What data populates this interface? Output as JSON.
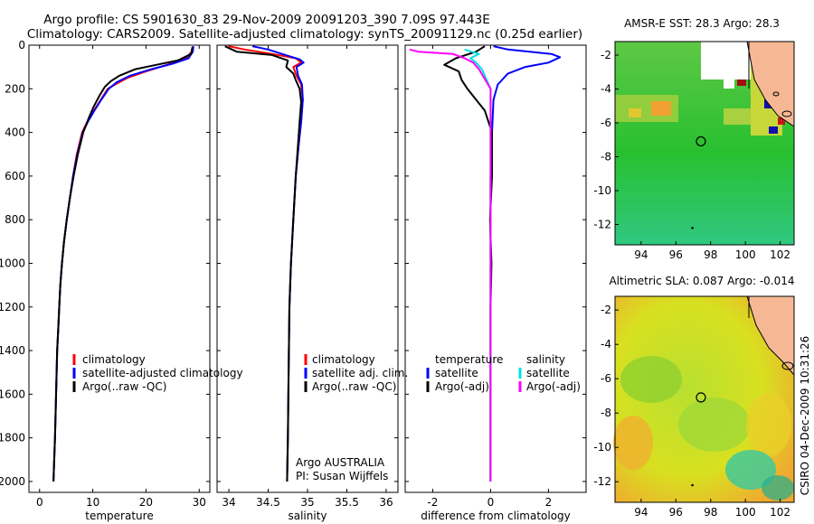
{
  "title_line1": "Argo profile: CS 5901630_83 29-Nov-2009 20091203_390 7.09S 97.443E",
  "title_line2": "Climatology: CARS2009. Satellite-adjusted climatology: synTS_20091129.nc (0.25d earlier)",
  "side_label": "CSIRO 04-Dec-2009 10:31:26",
  "colors": {
    "clim": "#ff0000",
    "sat": "#0000ff",
    "argo": "#000000",
    "cyan": "#00e0e0",
    "magenta": "#ff00ff"
  },
  "chart_data": [
    {
      "type": "line",
      "xlabel": "temperature",
      "xlim": [
        -2,
        32
      ],
      "ylim": [
        2050,
        0
      ],
      "xticks": [
        0,
        10,
        20,
        30
      ],
      "yticks": [
        0,
        200,
        400,
        600,
        800,
        1000,
        1200,
        1400,
        1600,
        1800,
        2000
      ],
      "legend": [
        "climatology",
        "satellite-adjusted climatology",
        "Argo(..raw -QC)"
      ],
      "series": [
        {
          "name": "climatology",
          "color": "clim",
          "points": [
            [
              28.8,
              5
            ],
            [
              28.6,
              30
            ],
            [
              27.5,
              60
            ],
            [
              24,
              90
            ],
            [
              20,
              120
            ],
            [
              16.5,
              150
            ],
            [
              14.2,
              180
            ],
            [
              12.8,
              200
            ],
            [
              11.5,
              250
            ],
            [
              10.2,
              300
            ],
            [
              9.0,
              350
            ],
            [
              8.0,
              400
            ],
            [
              7.0,
              500
            ],
            [
              6.3,
              600
            ],
            [
              5.7,
              700
            ],
            [
              5.1,
              800
            ],
            [
              4.6,
              900
            ],
            [
              4.2,
              1000
            ],
            [
              3.9,
              1100
            ],
            [
              3.7,
              1200
            ],
            [
              3.5,
              1300
            ],
            [
              3.3,
              1400
            ],
            [
              3.1,
              1600
            ],
            [
              2.9,
              1800
            ],
            [
              2.6,
              2000
            ]
          ]
        },
        {
          "name": "satellite-adjusted climatology",
          "color": "sat",
          "points": [
            [
              28.9,
              5
            ],
            [
              28.8,
              30
            ],
            [
              28.0,
              60
            ],
            [
              25,
              85
            ],
            [
              21,
              110
            ],
            [
              17,
              140
            ],
            [
              14.5,
              170
            ],
            [
              13,
              200
            ],
            [
              11.6,
              250
            ],
            [
              10.3,
              300
            ],
            [
              9.1,
              350
            ],
            [
              8.1,
              400
            ],
            [
              7.1,
              500
            ],
            [
              6.3,
              600
            ],
            [
              5.7,
              700
            ],
            [
              5.1,
              800
            ],
            [
              4.6,
              900
            ],
            [
              4.2,
              1000
            ],
            [
              3.9,
              1100
            ],
            [
              3.7,
              1200
            ],
            [
              3.5,
              1300
            ],
            [
              3.3,
              1400
            ],
            [
              3.1,
              1600
            ],
            [
              2.9,
              1800
            ],
            [
              2.6,
              2000
            ]
          ]
        },
        {
          "name": "Argo(..raw -QC)",
          "color": "argo",
          "points": [
            [
              28.7,
              10
            ],
            [
              28.5,
              40
            ],
            [
              26,
              70
            ],
            [
              22,
              90
            ],
            [
              18,
              110
            ],
            [
              15,
              140
            ],
            [
              13.4,
              165
            ],
            [
              12.3,
              190
            ],
            [
              11.3,
              230
            ],
            [
              10.2,
              280
            ],
            [
              9.3,
              330
            ],
            [
              8.2,
              400
            ],
            [
              7.2,
              500
            ],
            [
              6.4,
              600
            ],
            [
              5.7,
              700
            ],
            [
              5.1,
              800
            ],
            [
              4.6,
              900
            ],
            [
              4.2,
              1000
            ],
            [
              3.9,
              1100
            ],
            [
              3.7,
              1200
            ],
            [
              3.5,
              1300
            ],
            [
              3.3,
              1400
            ],
            [
              3.1,
              1600
            ],
            [
              2.9,
              1800
            ],
            [
              2.6,
              2000
            ]
          ]
        }
      ]
    },
    {
      "type": "line",
      "xlabel": "salinity",
      "xlim": [
        33.85,
        36.15
      ],
      "ylim": [
        2050,
        0
      ],
      "xticks": [
        34,
        34.5,
        35,
        35.5,
        36
      ],
      "yticks": [
        0,
        200,
        400,
        600,
        800,
        1000,
        1200,
        1400,
        1600,
        1800,
        2000
      ],
      "legend": [
        "climatology",
        "satellite adj. clim.",
        "Argo(..raw -QC)"
      ],
      "annotations": [
        "Argo AUSTRALIA",
        "PI: Susan Wijffels"
      ],
      "series": [
        {
          "name": "climatology",
          "color": "clim",
          "points": [
            [
              34.0,
              5
            ],
            [
              34.2,
              20
            ],
            [
              34.55,
              40
            ],
            [
              34.85,
              60
            ],
            [
              34.92,
              80
            ],
            [
              34.82,
              100
            ],
            [
              34.86,
              140
            ],
            [
              34.92,
              180
            ],
            [
              34.94,
              250
            ],
            [
              34.92,
              350
            ],
            [
              34.89,
              450
            ],
            [
              34.85,
              600
            ],
            [
              34.82,
              800
            ],
            [
              34.79,
              1000
            ],
            [
              34.77,
              1200
            ],
            [
              34.76,
              1500
            ],
            [
              34.75,
              1800
            ],
            [
              34.74,
              2000
            ]
          ]
        },
        {
          "name": "satellite adj. clim.",
          "color": "sat",
          "points": [
            [
              34.3,
              5
            ],
            [
              34.5,
              20
            ],
            [
              34.72,
              45
            ],
            [
              34.9,
              65
            ],
            [
              34.95,
              80
            ],
            [
              34.86,
              100
            ],
            [
              34.88,
              140
            ],
            [
              34.93,
              180
            ],
            [
              34.94,
              250
            ],
            [
              34.92,
              350
            ],
            [
              34.89,
              450
            ],
            [
              34.85,
              600
            ],
            [
              34.82,
              800
            ],
            [
              34.79,
              1000
            ],
            [
              34.77,
              1200
            ],
            [
              34.76,
              1500
            ],
            [
              34.75,
              1800
            ],
            [
              34.74,
              2000
            ]
          ]
        },
        {
          "name": "Argo(..raw -QC)",
          "color": "argo",
          "points": [
            [
              33.95,
              5
            ],
            [
              34.1,
              30
            ],
            [
              34.55,
              45
            ],
            [
              34.75,
              70
            ],
            [
              34.73,
              100
            ],
            [
              34.82,
              130
            ],
            [
              34.85,
              160
            ],
            [
              34.9,
              200
            ],
            [
              34.92,
              260
            ],
            [
              34.9,
              350
            ],
            [
              34.88,
              450
            ],
            [
              34.85,
              600
            ],
            [
              34.82,
              800
            ],
            [
              34.79,
              1000
            ],
            [
              34.77,
              1200
            ],
            [
              34.76,
              1500
            ],
            [
              34.75,
              1800
            ],
            [
              34.74,
              2000
            ]
          ]
        }
      ]
    },
    {
      "type": "line",
      "xlabel": "difference from climatology",
      "xlim": [
        -2.95,
        3.3
      ],
      "ylim": [
        2050,
        0
      ],
      "xticks": [
        -2,
        0,
        2
      ],
      "yticks": [
        0,
        200,
        400,
        600,
        800,
        1000,
        1200,
        1400,
        1600,
        1800,
        2000
      ],
      "legend": [
        "temperature",
        "satellite",
        "Argo(-adj)",
        "salinity",
        "satellite",
        "Argo(-adj)"
      ],
      "series": [
        {
          "name": "satellite",
          "color": "sat",
          "points": [
            [
              0.1,
              5
            ],
            [
              0.6,
              20
            ],
            [
              2.1,
              40
            ],
            [
              2.4,
              55
            ],
            [
              2.0,
              80
            ],
            [
              1.2,
              100
            ],
            [
              0.6,
              130
            ],
            [
              0.25,
              180
            ],
            [
              0.1,
              250
            ],
            [
              0.05,
              400
            ],
            [
              0,
              600
            ],
            [
              0,
              2000
            ]
          ]
        },
        {
          "name": "Argo(-adj)",
          "color": "argo",
          "points": [
            [
              -0.2,
              5
            ],
            [
              -0.5,
              30
            ],
            [
              -1.2,
              60
            ],
            [
              -1.6,
              90
            ],
            [
              -1.1,
              120
            ],
            [
              -1.0,
              160
            ],
            [
              -0.8,
              200
            ],
            [
              -0.5,
              250
            ],
            [
              -0.2,
              300
            ],
            [
              0.05,
              400
            ],
            [
              0.05,
              600
            ],
            [
              -0.02,
              800
            ],
            [
              0.03,
              1000
            ],
            [
              0,
              1200
            ],
            [
              0,
              2000
            ]
          ]
        },
        {
          "name": "satellite",
          "color": "cyan",
          "points": [
            [
              -0.9,
              20
            ],
            [
              -0.4,
              40
            ],
            [
              -0.7,
              60
            ],
            [
              -0.5,
              80
            ],
            [
              -0.3,
              110
            ],
            [
              0,
              200
            ],
            [
              0,
              2000
            ]
          ]
        },
        {
          "name": "Argo(-adj)",
          "color": "magenta",
          "points": [
            [
              -2.8,
              20
            ],
            [
              -2.5,
              30
            ],
            [
              -1.3,
              40
            ],
            [
              -0.9,
              60
            ],
            [
              -0.6,
              80
            ],
            [
              -0.4,
              110
            ],
            [
              0,
              200
            ],
            [
              0,
              2000
            ]
          ]
        }
      ]
    }
  ],
  "maps": [
    {
      "title": "AMSR-E SST: 28.3 Argo: 28.3",
      "xticks": [
        94,
        96,
        98,
        100,
        102
      ],
      "yticks": [
        -2,
        -4,
        -6,
        -8,
        -10,
        -12
      ],
      "xlim": [
        92.5,
        102.8
      ],
      "ylim": [
        -1.2,
        -13.2
      ],
      "argo_lon": 97.44,
      "argo_lat": -7.09
    },
    {
      "title": "Altimetric SLA: 0.087 Argo: -0.014",
      "xticks": [
        94,
        96,
        98,
        100,
        102
      ],
      "yticks": [
        -2,
        -4,
        -6,
        -8,
        -10,
        -12
      ],
      "xlim": [
        92.5,
        102.8
      ],
      "ylim": [
        -1.2,
        -13.2
      ],
      "argo_lon": 97.44,
      "argo_lat": -7.09
    }
  ]
}
